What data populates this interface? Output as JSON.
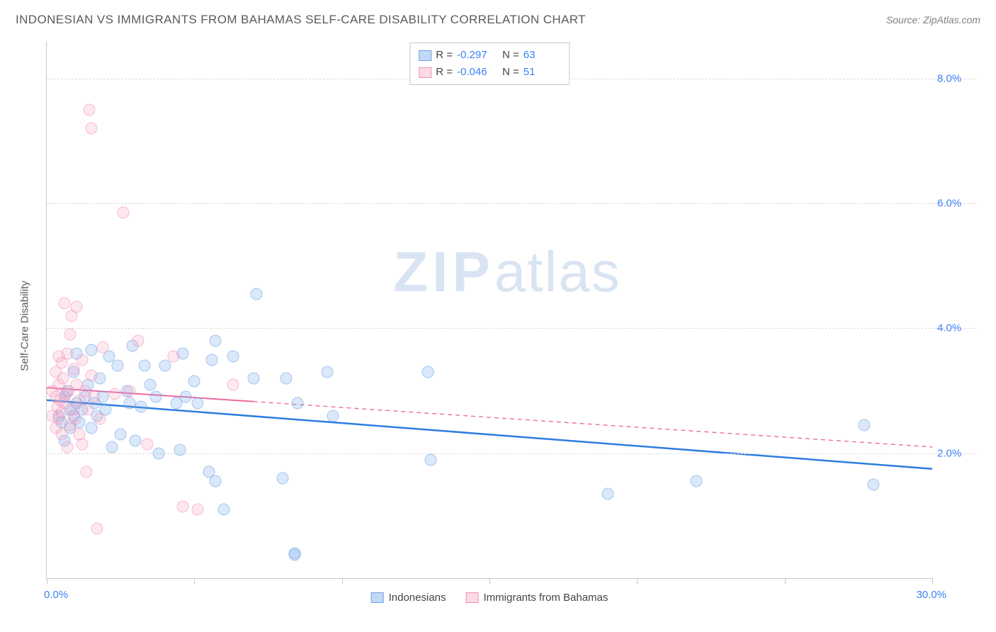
{
  "header": {
    "title": "INDONESIAN VS IMMIGRANTS FROM BAHAMAS SELF-CARE DISABILITY CORRELATION CHART",
    "source_prefix": "Source: ",
    "source_name": "ZipAtlas.com"
  },
  "ylabel": "Self-Care Disability",
  "watermark": {
    "zip": "ZIP",
    "atlas": "atlas"
  },
  "chart": {
    "type": "scatter",
    "background_color": "#ffffff",
    "grid_color": "#dcdcdc",
    "axis_color": "#c8c8c8",
    "tick_label_color": "#3b82f6",
    "label_fontsize": 15,
    "title_fontsize": 17,
    "xlim": [
      0,
      30
    ],
    "ylim": [
      0,
      8.6
    ],
    "x_tick_positions": [
      0,
      5,
      10,
      15,
      20,
      25,
      30
    ],
    "y_ticks": [
      {
        "value": 2.0,
        "label": "2.0%"
      },
      {
        "value": 4.0,
        "label": "4.0%"
      },
      {
        "value": 6.0,
        "label": "6.0%"
      },
      {
        "value": 8.0,
        "label": "8.0%"
      }
    ],
    "x_min_label": "0.0%",
    "x_max_label": "30.0%",
    "marker_size": 17,
    "marker_opacity": 0.6,
    "series": [
      {
        "key": "indonesians",
        "label": "Indonesians",
        "color_fill": "rgba(120,170,235,0.45)",
        "color_stroke": "#6aa0e0",
        "R": "-0.297",
        "N": "63",
        "trend": {
          "x1": 0,
          "y1": 2.85,
          "x2": 30,
          "y2": 1.75,
          "solid_until_x": 30,
          "stroke": "#2f7de1",
          "width": 2.5
        },
        "points": [
          [
            0.4,
            2.6
          ],
          [
            0.5,
            2.5
          ],
          [
            0.6,
            2.9
          ],
          [
            0.6,
            2.2
          ],
          [
            0.7,
            3.0
          ],
          [
            0.8,
            2.7
          ],
          [
            0.8,
            2.4
          ],
          [
            0.9,
            2.6
          ],
          [
            0.9,
            3.3
          ],
          [
            1.0,
            2.8
          ],
          [
            1.0,
            3.6
          ],
          [
            1.1,
            2.5
          ],
          [
            1.2,
            2.7
          ],
          [
            1.3,
            2.9
          ],
          [
            1.4,
            3.1
          ],
          [
            1.5,
            2.4
          ],
          [
            1.5,
            3.65
          ],
          [
            1.6,
            2.8
          ],
          [
            1.7,
            2.6
          ],
          [
            1.8,
            3.2
          ],
          [
            1.9,
            2.9
          ],
          [
            2.0,
            2.7
          ],
          [
            2.1,
            3.55
          ],
          [
            2.2,
            2.1
          ],
          [
            2.4,
            3.4
          ],
          [
            2.5,
            2.3
          ],
          [
            2.7,
            3.0
          ],
          [
            2.8,
            2.8
          ],
          [
            2.9,
            3.72
          ],
          [
            3.0,
            2.2
          ],
          [
            3.2,
            2.75
          ],
          [
            3.3,
            3.4
          ],
          [
            3.5,
            3.1
          ],
          [
            3.7,
            2.9
          ],
          [
            3.8,
            2.0
          ],
          [
            4.0,
            3.4
          ],
          [
            4.4,
            2.8
          ],
          [
            4.5,
            2.05
          ],
          [
            4.6,
            3.6
          ],
          [
            4.7,
            2.9
          ],
          [
            5.0,
            3.15
          ],
          [
            5.1,
            2.8
          ],
          [
            5.5,
            1.7
          ],
          [
            5.6,
            3.5
          ],
          [
            5.7,
            1.55
          ],
          [
            5.7,
            3.8
          ],
          [
            6.0,
            1.1
          ],
          [
            6.3,
            3.55
          ],
          [
            7.0,
            3.2
          ],
          [
            7.1,
            4.55
          ],
          [
            8.0,
            1.6
          ],
          [
            8.1,
            3.2
          ],
          [
            8.4,
            0.4
          ],
          [
            8.4,
            0.37
          ],
          [
            8.5,
            2.8
          ],
          [
            9.5,
            3.3
          ],
          [
            9.7,
            2.6
          ],
          [
            12.9,
            3.3
          ],
          [
            13.0,
            1.9
          ],
          [
            19.0,
            1.35
          ],
          [
            22.0,
            1.55
          ],
          [
            27.7,
            2.45
          ],
          [
            28.0,
            1.5
          ]
        ]
      },
      {
        "key": "bahamas",
        "label": "Immigrants from Bahamas",
        "color_fill": "rgba(245,160,190,0.4)",
        "color_stroke": "#f090b8",
        "R": "-0.046",
        "N": "51",
        "trend": {
          "x1": 0,
          "y1": 3.05,
          "x2": 30,
          "y2": 2.1,
          "solid_until_x": 7.0,
          "stroke": "#ec6aa0",
          "width": 2
        },
        "points": [
          [
            0.2,
            2.6
          ],
          [
            0.2,
            3.0
          ],
          [
            0.3,
            2.9
          ],
          [
            0.3,
            3.3
          ],
          [
            0.3,
            2.4
          ],
          [
            0.35,
            2.75
          ],
          [
            0.4,
            3.55
          ],
          [
            0.4,
            2.55
          ],
          [
            0.4,
            3.1
          ],
          [
            0.45,
            2.85
          ],
          [
            0.5,
            3.45
          ],
          [
            0.5,
            2.65
          ],
          [
            0.5,
            2.3
          ],
          [
            0.55,
            3.2
          ],
          [
            0.6,
            2.8
          ],
          [
            0.6,
            4.4
          ],
          [
            0.65,
            2.95
          ],
          [
            0.7,
            3.6
          ],
          [
            0.7,
            2.1
          ],
          [
            0.75,
            3.0
          ],
          [
            0.8,
            3.9
          ],
          [
            0.8,
            2.45
          ],
          [
            0.85,
            4.2
          ],
          [
            0.9,
            2.7
          ],
          [
            0.9,
            3.35
          ],
          [
            0.95,
            2.55
          ],
          [
            1.0,
            3.1
          ],
          [
            1.0,
            4.35
          ],
          [
            1.1,
            2.85
          ],
          [
            1.1,
            2.3
          ],
          [
            1.2,
            3.5
          ],
          [
            1.2,
            2.15
          ],
          [
            1.3,
            3.0
          ],
          [
            1.35,
            1.7
          ],
          [
            1.4,
            2.7
          ],
          [
            1.45,
            7.5
          ],
          [
            1.5,
            3.25
          ],
          [
            1.5,
            7.2
          ],
          [
            1.6,
            2.9
          ],
          [
            1.7,
            0.8
          ],
          [
            1.8,
            2.55
          ],
          [
            1.9,
            3.7
          ],
          [
            2.3,
            2.95
          ],
          [
            2.6,
            5.85
          ],
          [
            2.8,
            3.0
          ],
          [
            3.1,
            3.8
          ],
          [
            3.4,
            2.15
          ],
          [
            4.3,
            3.55
          ],
          [
            4.6,
            1.15
          ],
          [
            5.1,
            1.1
          ],
          [
            6.3,
            3.1
          ]
        ]
      }
    ]
  },
  "top_legend": {
    "r_label": "R =",
    "n_label": "N ="
  },
  "bottom_legend": {}
}
